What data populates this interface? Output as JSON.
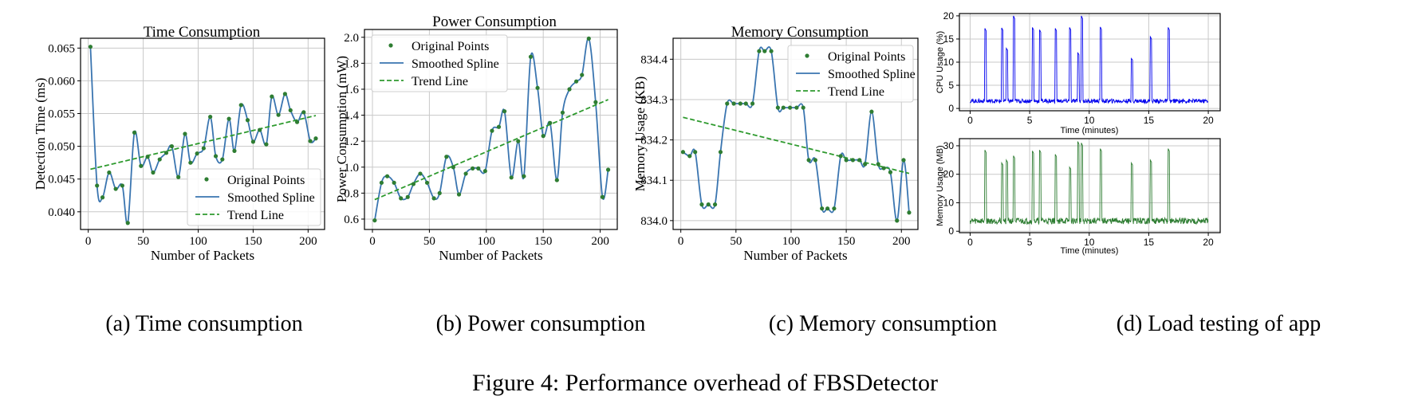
{
  "chart_data": [
    {
      "type": "line",
      "title": "Time Consumption",
      "xlabel": "Number of Packets",
      "ylabel": "Detection Time (ms)",
      "xlim": [
        -7,
        215
      ],
      "ylim": [
        0.0373,
        0.0665
      ],
      "xticks": [
        0,
        50,
        100,
        150,
        200
      ],
      "xtick_labels": [
        "0",
        "50",
        "100",
        "150",
        "200"
      ],
      "yticks": [
        0.04,
        0.045,
        0.05,
        0.055,
        0.06,
        0.065
      ],
      "ytick_labels": [
        "0.040",
        "0.045",
        "0.050",
        "0.055",
        "0.060",
        "0.065"
      ],
      "legend": {
        "position": "lower-right",
        "entries": [
          "Original Points",
          "Smoothed Spline",
          "Trend Line"
        ]
      },
      "series": [
        {
          "name": "Original Points",
          "x": [
            2,
            8,
            13,
            19,
            25,
            31,
            36,
            42,
            48,
            54,
            59,
            65,
            71,
            76,
            82,
            88,
            93,
            99,
            105,
            111,
            116,
            122,
            128,
            133,
            139,
            145,
            150,
            156,
            162,
            167,
            173,
            179,
            184,
            190,
            196,
            202,
            207
          ],
          "values": [
            0.0652,
            0.044,
            0.0422,
            0.046,
            0.0435,
            0.044,
            0.0383,
            0.0521,
            0.047,
            0.0484,
            0.046,
            0.048,
            0.049,
            0.05,
            0.0453,
            0.0519,
            0.0475,
            0.0489,
            0.0497,
            0.0545,
            0.0485,
            0.048,
            0.0542,
            0.0493,
            0.0563,
            0.054,
            0.0507,
            0.0525,
            0.0503,
            0.0576,
            0.0548,
            0.058,
            0.0555,
            0.0537,
            0.0552,
            0.0508,
            0.0512
          ]
        },
        {
          "name": "Trend Line",
          "x": [
            2,
            207
          ],
          "values": [
            0.0465,
            0.0547
          ]
        }
      ]
    },
    {
      "type": "line",
      "title": "Power Consumption",
      "xlabel": "Number of Packets",
      "ylabel": "Power Consumption (mW)",
      "xlim": [
        -7,
        215
      ],
      "ylim": [
        0.52,
        2.06
      ],
      "xticks": [
        0,
        50,
        100,
        150,
        200
      ],
      "xtick_labels": [
        "0",
        "50",
        "100",
        "150",
        "200"
      ],
      "yticks": [
        0.6,
        0.8,
        1.0,
        1.2,
        1.4,
        1.6,
        1.8,
        2.0
      ],
      "ytick_labels": [
        "0.6",
        "0.8",
        "1.0",
        "1.2",
        "1.4",
        "1.6",
        "1.8",
        "2.0"
      ],
      "legend": {
        "position": "upper-left",
        "entries": [
          "Original Points",
          "Smoothed Spline",
          "Trend Line"
        ]
      },
      "series": [
        {
          "name": "Original Points",
          "x": [
            2,
            8,
            13,
            19,
            25,
            31,
            36,
            42,
            48,
            54,
            59,
            65,
            71,
            76,
            82,
            88,
            93,
            99,
            105,
            111,
            116,
            122,
            128,
            133,
            139,
            145,
            150,
            156,
            162,
            167,
            173,
            179,
            184,
            190,
            196,
            202,
            207
          ],
          "values": [
            0.59,
            0.88,
            0.93,
            0.88,
            0.76,
            0.77,
            0.87,
            0.95,
            0.88,
            0.76,
            0.8,
            1.08,
            1.0,
            0.79,
            0.95,
            0.99,
            0.99,
            0.97,
            1.28,
            1.31,
            1.43,
            0.92,
            1.2,
            0.93,
            1.85,
            1.61,
            1.24,
            1.34,
            0.9,
            1.42,
            1.6,
            1.66,
            1.71,
            1.99,
            1.5,
            0.77,
            0.98
          ]
        },
        {
          "name": "Trend Line",
          "x": [
            2,
            207
          ],
          "values": [
            0.75,
            1.52
          ]
        }
      ]
    },
    {
      "type": "line",
      "title": "Memory Consumption",
      "xlabel": "Number of Packets",
      "ylabel": "Memory Usage (KB)",
      "xlim": [
        -7,
        215
      ],
      "ylim": [
        833.978,
        834.452
      ],
      "xticks": [
        0,
        50,
        100,
        150,
        200
      ],
      "xtick_labels": [
        "0",
        "50",
        "100",
        "150",
        "200"
      ],
      "yticks": [
        834.0,
        834.1,
        834.2,
        834.3,
        834.4
      ],
      "ytick_labels": [
        "834.0",
        "834.1",
        "834.2",
        "834.3",
        "834.4"
      ],
      "legend": {
        "position": "upper-right",
        "entries": [
          "Original Points",
          "Smoothed Spline",
          "Trend Line"
        ]
      },
      "series": [
        {
          "name": "Original Points",
          "x": [
            2,
            8,
            13,
            19,
            25,
            31,
            36,
            42,
            48,
            54,
            59,
            65,
            71,
            76,
            82,
            88,
            93,
            99,
            105,
            111,
            116,
            122,
            128,
            133,
            139,
            145,
            150,
            156,
            162,
            167,
            173,
            179,
            184,
            190,
            196,
            202,
            207
          ],
          "values": [
            834.17,
            834.16,
            834.17,
            834.04,
            834.04,
            834.04,
            834.17,
            834.29,
            834.29,
            834.29,
            834.29,
            834.29,
            834.42,
            834.42,
            834.42,
            834.28,
            834.28,
            834.28,
            834.28,
            834.28,
            834.15,
            834.15,
            834.03,
            834.03,
            834.03,
            834.16,
            834.15,
            834.15,
            834.15,
            834.14,
            834.27,
            834.14,
            834.13,
            834.12,
            834.0,
            834.15,
            834.02
          ]
        },
        {
          "name": "Trend Line",
          "x": [
            2,
            207
          ],
          "values": [
            834.256,
            834.117
          ]
        }
      ]
    },
    {
      "type": "line",
      "title": "",
      "xlabel": "Time (minutes)",
      "ylabel": "CPU Usage (%)",
      "xlim": [
        -0.9,
        21.0
      ],
      "ylim": [
        -0.5,
        20.5
      ],
      "xticks": [
        0,
        5,
        10,
        15,
        20
      ],
      "xtick_labels": [
        "0",
        "5",
        "10",
        "15",
        "20"
      ],
      "yticks": [
        0,
        5,
        10,
        15,
        20
      ],
      "ytick_labels": [
        "0",
        "5",
        "10",
        "15",
        "20"
      ],
      "baseline": 1.6,
      "spikes": [
        {
          "x": 1.2,
          "y": 17.3
        },
        {
          "x": 2.6,
          "y": 17.4
        },
        {
          "x": 3.0,
          "y": 13.0
        },
        {
          "x": 3.6,
          "y": 20.0
        },
        {
          "x": 5.2,
          "y": 17.5
        },
        {
          "x": 5.8,
          "y": 17.0
        },
        {
          "x": 7.1,
          "y": 17.3
        },
        {
          "x": 8.3,
          "y": 17.5
        },
        {
          "x": 9.0,
          "y": 12.0
        },
        {
          "x": 9.3,
          "y": 20.0
        },
        {
          "x": 10.9,
          "y": 17.6
        },
        {
          "x": 13.5,
          "y": 10.8
        },
        {
          "x": 15.1,
          "y": 15.5
        },
        {
          "x": 16.6,
          "y": 17.5
        }
      ],
      "color": "#0000ee"
    },
    {
      "type": "line",
      "title": "",
      "xlabel": "Time (minutes)",
      "ylabel": "Memory Usage (MB)",
      "xlim": [
        -0.9,
        21.0
      ],
      "ylim": [
        -0.5,
        32.5
      ],
      "xticks": [
        0,
        5,
        10,
        15,
        20
      ],
      "xtick_labels": [
        "0",
        "5",
        "10",
        "15",
        "20"
      ],
      "yticks": [
        0,
        10,
        20,
        30
      ],
      "ytick_labels": [
        "0",
        "10",
        "20",
        "30"
      ],
      "baseline": 3.6,
      "spikes": [
        {
          "x": 1.2,
          "y": 28.5
        },
        {
          "x": 2.6,
          "y": 24.0
        },
        {
          "x": 3.0,
          "y": 25.0
        },
        {
          "x": 3.6,
          "y": 26.5
        },
        {
          "x": 5.2,
          "y": 28.2
        },
        {
          "x": 5.8,
          "y": 28.5
        },
        {
          "x": 7.1,
          "y": 27.0
        },
        {
          "x": 8.3,
          "y": 22.5
        },
        {
          "x": 9.0,
          "y": 31.5
        },
        {
          "x": 9.3,
          "y": 31.0
        },
        {
          "x": 10.9,
          "y": 29.0
        },
        {
          "x": 13.5,
          "y": 24.0
        },
        {
          "x": 15.1,
          "y": 25.0
        },
        {
          "x": 16.6,
          "y": 29.0
        }
      ],
      "color": "#2e7d32"
    }
  ],
  "colors": {
    "points": "#2e7d32",
    "spline": "#3a75b0",
    "trend": "#2e9a2e"
  },
  "captions": [
    "(a) Time consumption",
    "(b) Power consumption",
    "(c) Memory consumption",
    "(d) Load testing of app"
  ],
  "figure_caption": "Figure 4: Performance overhead of FBSDetector"
}
